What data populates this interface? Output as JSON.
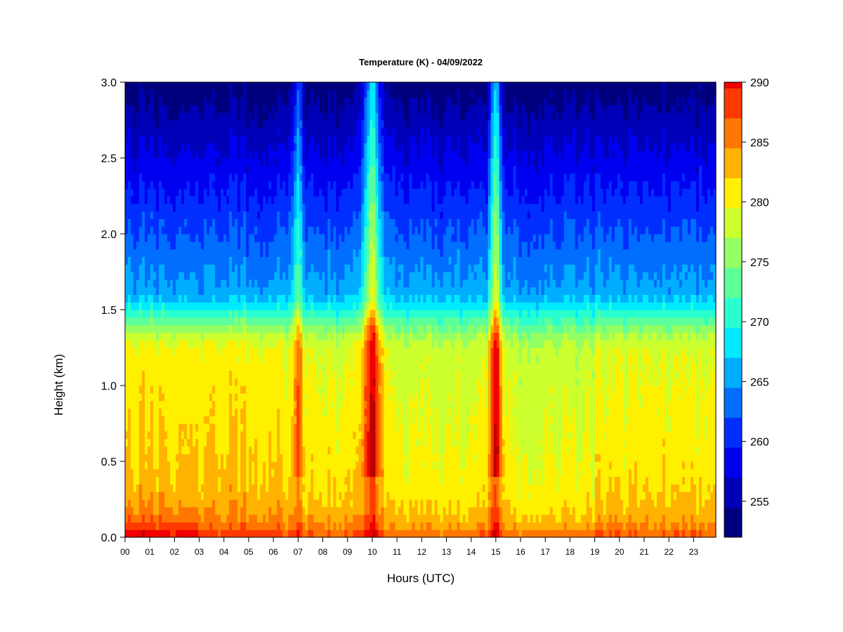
{
  "chart_data": {
    "type": "heatmap",
    "title": "Temperature (K) - 04/09/2022",
    "xlabel": "Hours (UTC)",
    "ylabel": "Height (km)",
    "x_ticks": [
      "00",
      "01",
      "02",
      "03",
      "04",
      "05",
      "06",
      "07",
      "08",
      "09",
      "10",
      "11",
      "12",
      "13",
      "14",
      "15",
      "16",
      "17",
      "18",
      "19",
      "20",
      "21",
      "22",
      "23"
    ],
    "xlim": [
      0,
      23.9
    ],
    "y_ticks": [
      "0.0",
      "0.5",
      "1.0",
      "1.5",
      "2.0",
      "2.5",
      "3.0"
    ],
    "ylim": [
      0,
      3.0
    ],
    "colorbar": {
      "range": [
        252,
        290
      ],
      "step": 2.5,
      "ticks": [
        "255",
        "260",
        "265",
        "270",
        "275",
        "280",
        "285",
        "290"
      ],
      "colors": [
        "#00007f",
        "#0000b8",
        "#0000f0",
        "#002eff",
        "#006eff",
        "#00aeff",
        "#00eaff",
        "#29ffce",
        "#5dff9a",
        "#94ff63",
        "#ccff2e",
        "#fff000",
        "#ffb200",
        "#ff7700",
        "#ff3a00",
        "#f00000",
        "#b80000",
        "#7f0000"
      ]
    },
    "grid": false,
    "notes_visible": [],
    "features": [
      {
        "hour": 7.0,
        "label_hour": "07"
      },
      {
        "hour": 10.0,
        "label_hour": "10"
      },
      {
        "hour": 15.0,
        "label_hour": "15"
      }
    ]
  }
}
